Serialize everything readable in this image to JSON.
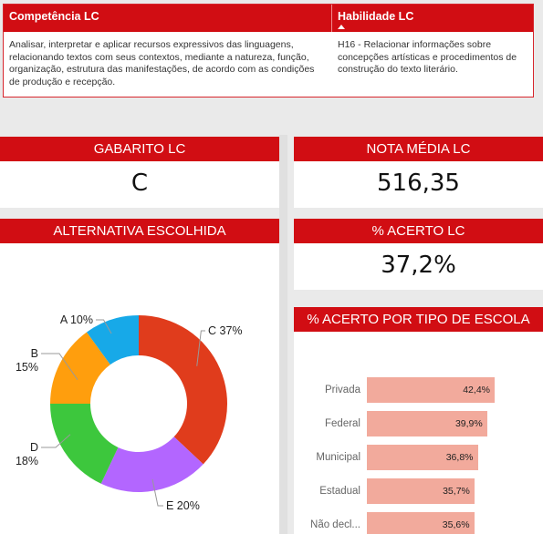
{
  "table": {
    "col1_header": "Competência LC",
    "col2_header": "Habilidade LC",
    "col1_text": "Analisar, interpretar e aplicar recursos expressivos das linguagens, relacionando textos com seus contextos, mediante a natureza, função, organização, estrutura das manifestações, de acordo com as condições de produção e recepção.",
    "col2_text": "H16 - Relacionar informações sobre concepções artísticas e procedimentos de construção do texto literário."
  },
  "cards": {
    "gabarito": {
      "title": "GABARITO LC",
      "value": "C"
    },
    "nota": {
      "title": "NOTA MÉDIA LC",
      "value": "516,35"
    },
    "alternativa": {
      "title": "ALTERNATIVA ESCOLHIDA"
    },
    "acerto": {
      "title": "% ACERTO LC",
      "value": "37,2%"
    },
    "escola": {
      "title": "% ACERTO POR TIPO DE ESCOLA"
    }
  },
  "chart_data": [
    {
      "type": "pie",
      "title": "ALTERNATIVA ESCOLHIDA",
      "categories": [
        "C",
        "E",
        "D",
        "B",
        "A"
      ],
      "values": [
        37,
        20,
        18,
        15,
        10
      ],
      "labels": [
        "C 37%",
        "E 20%",
        "D 18%",
        "B 15%",
        "A 10%"
      ],
      "colors": [
        "#e03c1c",
        "#b366ff",
        "#3dc73d",
        "#ff9e0d",
        "#17a9e8"
      ],
      "donut": true
    },
    {
      "type": "bar",
      "orientation": "horizontal",
      "title": "% ACERTO POR TIPO DE ESCOLA",
      "categories": [
        "Privada",
        "Federal",
        "Municipal",
        "Estadual",
        "Não decl..."
      ],
      "values": [
        42.4,
        39.9,
        36.8,
        35.7,
        35.6
      ],
      "labels": [
        "42,4%",
        "39,9%",
        "36,8%",
        "35,7%",
        "35,6%"
      ],
      "color": "#f2aa9c"
    }
  ]
}
